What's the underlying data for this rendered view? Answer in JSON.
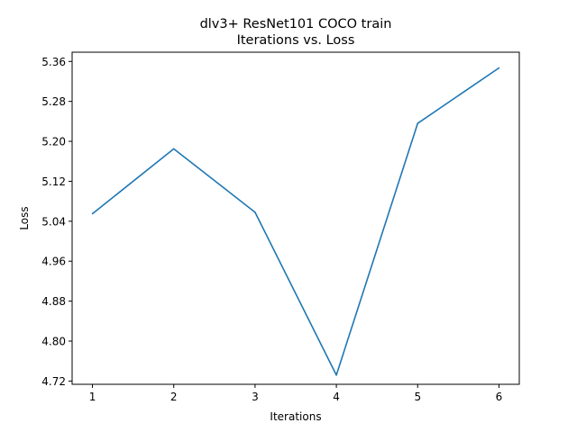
{
  "chart_data": {
    "type": "line",
    "title": "dlv3+ ResNet101 COCO train",
    "subtitle": "Iterations vs. Loss",
    "xlabel": "Iterations",
    "ylabel": "Loss",
    "x": [
      1,
      2,
      3,
      4,
      5,
      6
    ],
    "series": [
      {
        "values": [
          5.055,
          5.185,
          5.058,
          4.732,
          5.236,
          5.347
        ],
        "color": "#1f77b4"
      }
    ],
    "xticks": [
      "1",
      "2",
      "3",
      "4",
      "5",
      "6"
    ],
    "yticks": [
      "4.72",
      "4.80",
      "4.88",
      "4.96",
      "5.04",
      "5.12",
      "5.20",
      "5.28",
      "5.36"
    ],
    "xlim": [
      0.75,
      6.25
    ],
    "ylim": [
      4.7135,
      5.3785
    ],
    "grid": false,
    "legend": "none"
  }
}
